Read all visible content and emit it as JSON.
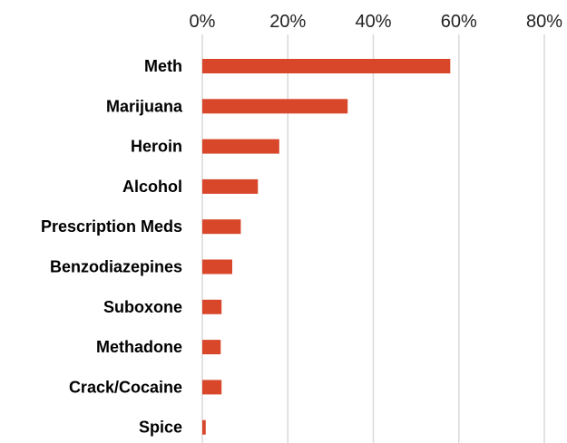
{
  "chart_data": {
    "type": "bar",
    "orientation": "horizontal",
    "title": "",
    "xlabel": "",
    "ylabel": "",
    "categories": [
      "Meth",
      "Marijuana",
      "Heroin",
      "Alcohol",
      "Prescription Meds",
      "Benzodiazepines",
      "Suboxone",
      "Methadone",
      "Crack/Cocaine",
      "Spice"
    ],
    "values": [
      58,
      34,
      18,
      13,
      9,
      7,
      4.5,
      4.3,
      4.5,
      0.8
    ],
    "xlim": [
      0,
      80
    ],
    "x_ticks": [
      0,
      20,
      40,
      60,
      80
    ],
    "x_tick_labels": [
      "0%",
      "20%",
      "40%",
      "60%",
      "80%"
    ],
    "x_axis_position": "top",
    "grid": true,
    "legend": "none",
    "bar_color": "#d9472b",
    "grid_color": "#d9d9d9"
  }
}
